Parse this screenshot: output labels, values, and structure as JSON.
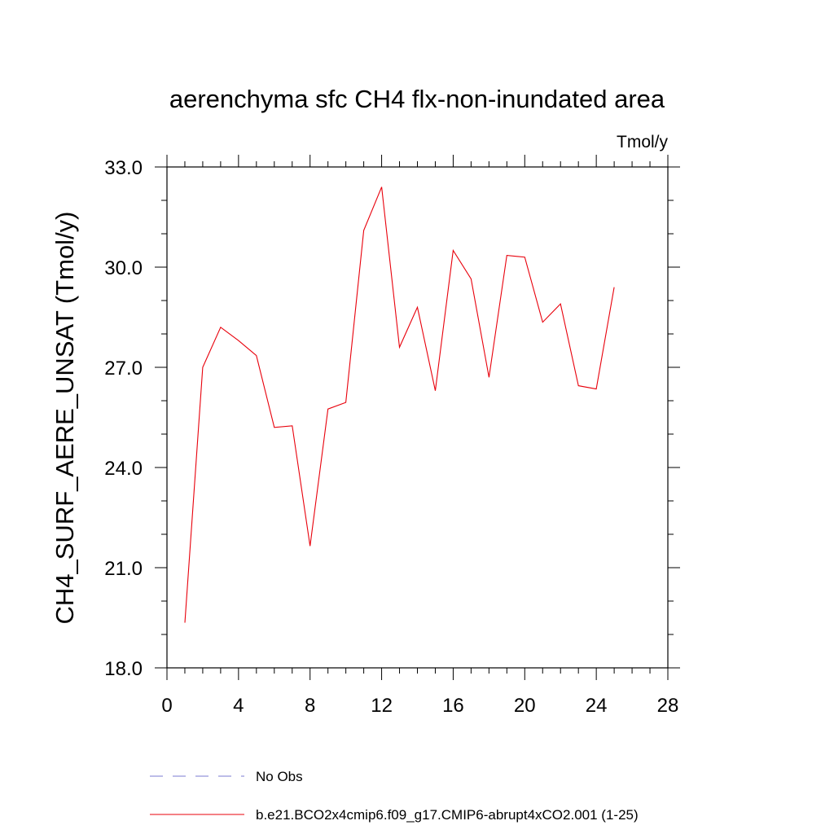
{
  "chart_data": {
    "type": "line",
    "title": "aerenchyma sfc CH4 flx-non-inundated area",
    "units_label": "Tmol/y",
    "xlabel": "",
    "ylabel": "CH4_SURF_AERE_UNSAT  (Tmol/y)",
    "xlim": [
      0,
      28
    ],
    "ylim": [
      18.0,
      33.0
    ],
    "x_ticks": [
      0,
      4,
      8,
      12,
      16,
      20,
      24,
      28
    ],
    "x_tick_labels": [
      "0",
      "4",
      "8",
      "12",
      "16",
      "20",
      "24",
      "28"
    ],
    "y_ticks": [
      18.0,
      21.0,
      24.0,
      27.0,
      30.0,
      33.0
    ],
    "y_tick_labels": [
      "18.0",
      "21.0",
      "24.0",
      "27.0",
      "30.0",
      "33.0"
    ],
    "grid": false,
    "legend_position": "bottom",
    "series": [
      {
        "name": "b.e21.BCO2x4cmip6.f09_g17.CMIP6-abrupt4xCO2.001 (1-25)",
        "color": "#e8000b",
        "style": "solid",
        "x": [
          1,
          2,
          3,
          4,
          5,
          6,
          7,
          8,
          9,
          10,
          11,
          12,
          13,
          14,
          15,
          16,
          17,
          18,
          19,
          20,
          21,
          22,
          23,
          24,
          25
        ],
        "y": [
          19.35,
          27.0,
          28.2,
          27.8,
          27.35,
          25.2,
          25.25,
          21.65,
          25.75,
          25.95,
          31.1,
          32.4,
          27.6,
          28.8,
          26.3,
          30.5,
          29.65,
          26.7,
          30.35,
          30.3,
          28.35,
          28.9,
          26.45,
          26.35,
          29.4
        ]
      }
    ],
    "legend": [
      {
        "label": "No Obs",
        "color": "#7b7bd0",
        "style": "dashed"
      },
      {
        "label": "b.e21.BCO2x4cmip6.f09_g17.CMIP6-abrupt4xCO2.001 (1-25)",
        "color": "#e8000b",
        "style": "solid"
      }
    ]
  }
}
